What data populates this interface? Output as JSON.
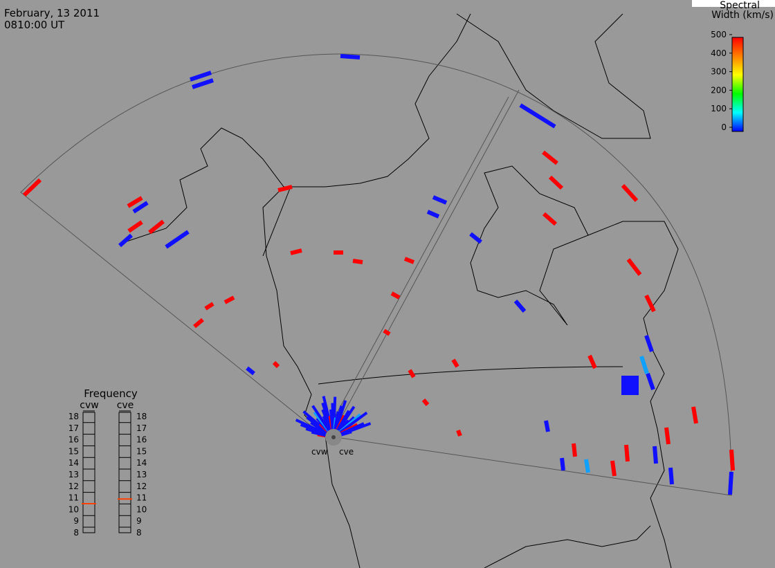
{
  "header": {
    "date": "February, 13 2011",
    "time": "0810:00 UT"
  },
  "colorbar": {
    "title_lines": [
      "Spectral",
      "Width (km/s)"
    ],
    "ticks": [
      0,
      100,
      200,
      300,
      400,
      500
    ],
    "lim": [
      0,
      500
    ]
  },
  "frequency": {
    "title": "Frequency",
    "ticks": [
      8,
      9,
      10,
      11,
      12,
      13,
      14,
      15,
      16,
      17,
      18
    ],
    "lim": [
      8,
      18
    ],
    "radars": [
      {
        "name": "cvw",
        "value": 10.5
      },
      {
        "name": "cve",
        "value": 10.9
      }
    ]
  },
  "sites": [
    "cvw",
    "cve"
  ]
}
